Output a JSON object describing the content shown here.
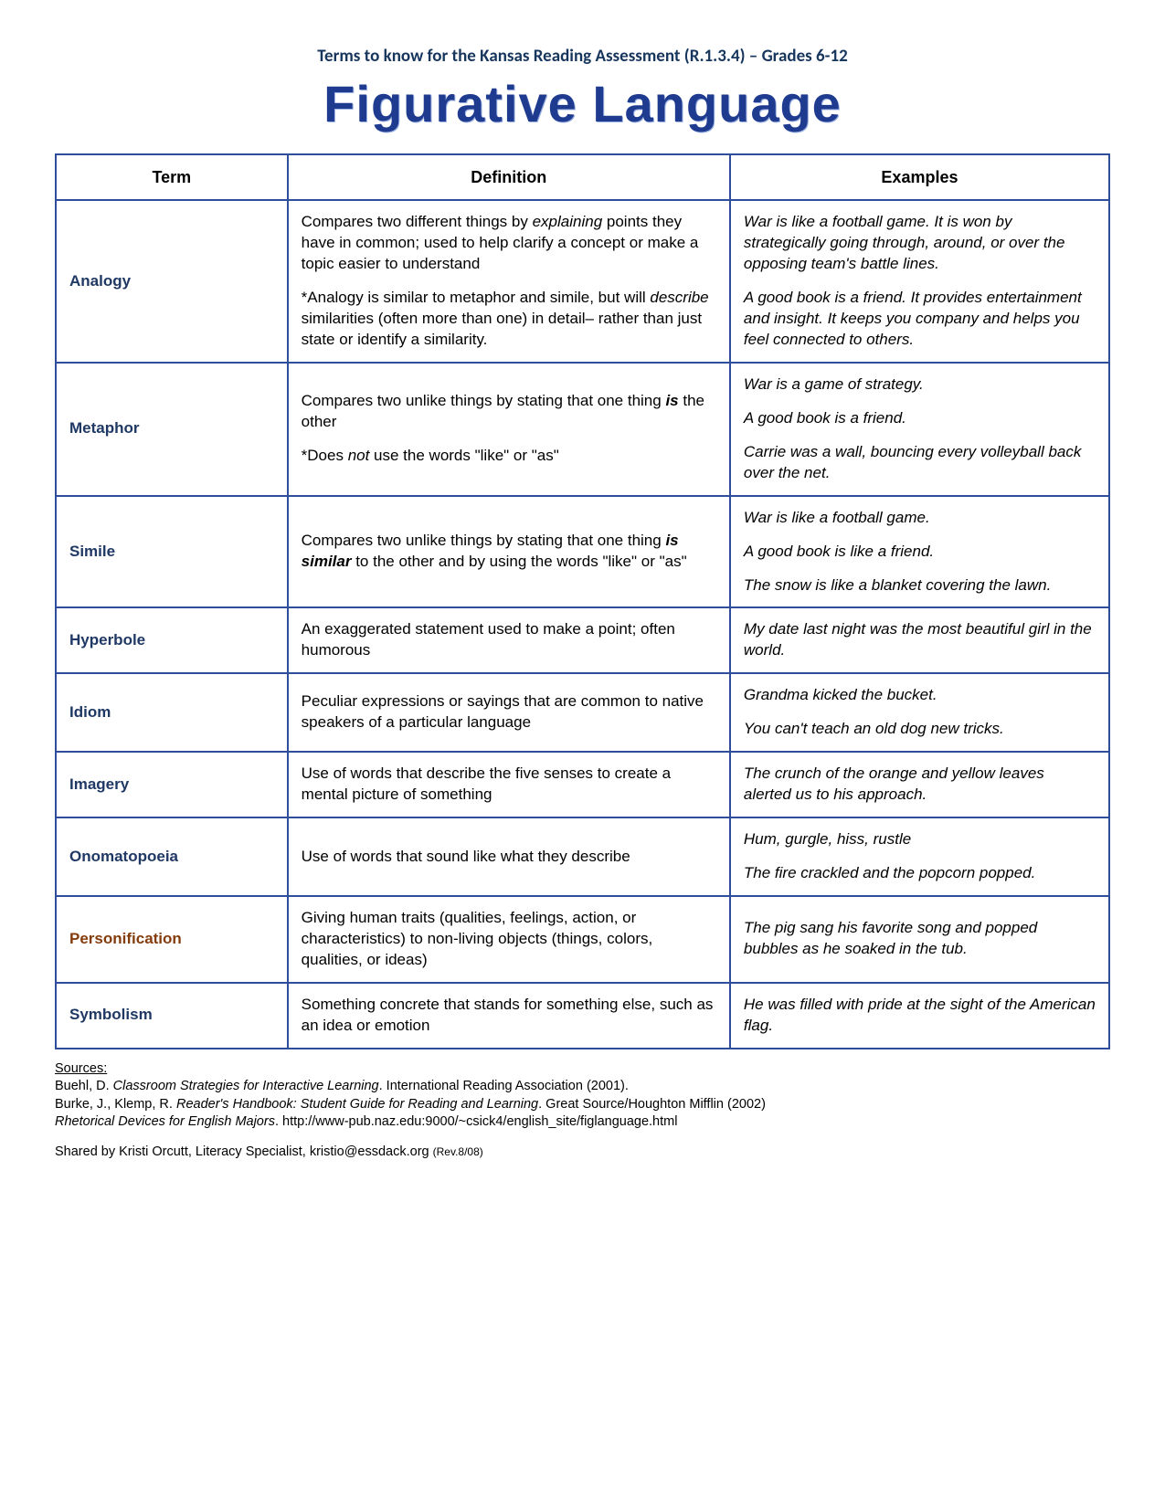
{
  "document": {
    "subheading": "Terms to know for the Kansas Reading Assessment (R.1.3.4) – Grades 6-12",
    "title": "Figurative Language",
    "title_color": "#1f3b8f",
    "subheading_color": "#17365d",
    "border_color": "#2e4d9b",
    "table": {
      "headers": [
        "Term",
        "Definition",
        "Examples"
      ],
      "rows": [
        {
          "term": "Analogy",
          "term_color": "#1f3864",
          "definition_html": "<p class=\"para\">Compares two different things by <em class=\"ital\">explaining</em> points they have in common; used to help clarify a concept or make a topic easier to understand</p><p class=\"para\">*Analogy is similar to metaphor and simile, but will <em class=\"ital\">describe</em> similarities (often more than one) in detail– rather than just state or identify a similarity.</p>",
          "examples_html": "<p class=\"para\">War is like a football game.  It is won by strategically going through, around, or over the opposing team's battle lines.</p><p class=\"para\">A good book is a friend. It provides entertainment and insight. It keeps you company and helps you feel connected to others.</p>"
        },
        {
          "term": "Metaphor",
          "term_color": "#1f3864",
          "definition_html": "<p class=\"para\">Compares two unlike things by stating that one thing <strong class=\"bi\">is</strong> the other</p><p class=\"para\">*Does <em class=\"ital\">not</em> use the words \"like\" or \"as\"</p>",
          "examples_html": "<p class=\"para\">War is a game of strategy.</p><p class=\"para\">A good book is a friend.</p><p class=\"para\">Carrie was a wall, bouncing every volleyball back over the net.</p>"
        },
        {
          "term": "Simile",
          "term_color": "#1f3864",
          "definition_html": "<p class=\"para\">Compares two unlike things by stating that one thing <strong class=\"bi\">is similar</strong> to the other and by using the words \"like\" or \"as\"</p>",
          "examples_html": "<p class=\"para\">War is like a football game.</p><p class=\"para\">A good book is like a friend.</p><p class=\"para\">The snow is like a blanket covering the lawn.</p>"
        },
        {
          "term": "Hyperbole",
          "term_color": "#1f3864",
          "definition_html": "<p class=\"para\">An exaggerated statement used to make a point; often humorous</p>",
          "examples_html": "<p class=\"para\">My date last night was the most beautiful girl in the world.</p>"
        },
        {
          "term": "Idiom",
          "term_color": "#1f3864",
          "definition_html": "<p class=\"para\">Peculiar expressions or sayings that are common to native speakers of a particular language</p>",
          "examples_html": "<p class=\"para\">Grandma kicked the bucket.</p><p class=\"para\">You can't teach an old dog new tricks.</p>"
        },
        {
          "term": "Imagery",
          "term_color": "#1f3864",
          "definition_html": "<p class=\"para\">Use of words that describe the five senses to create a mental picture of something</p>",
          "examples_html": "<p class=\"para\">The crunch of the orange and yellow leaves alerted us to his approach.</p>"
        },
        {
          "term": "Onomatopoeia",
          "term_color": "#1f3864",
          "definition_html": "<p class=\"para\">Use of words that sound like what they describe</p>",
          "examples_html": "<p class=\"para\">Hum, gurgle, hiss, rustle</p><p class=\"para\">The fire crackled and the popcorn popped.</p>"
        },
        {
          "term": "Personification",
          "term_color": "#843c0c",
          "definition_html": "<p class=\"para\">Giving human traits (qualities, feelings, action, or characteristics) to non-living objects (things, colors, qualities, or ideas)</p>",
          "examples_html": "<p class=\"para\">The pig sang his favorite song and popped bubbles as he soaked in the tub.</p>"
        },
        {
          "term": "Symbolism",
          "term_color": "#1f3864",
          "definition_html": "<p class=\"para\">Something concrete that stands for something else, such as an idea or emotion</p>",
          "examples_html": "<p class=\"para\">He was filled with pride at the sight of the American flag.</p>"
        }
      ]
    },
    "sources": {
      "label": "Sources:",
      "lines_html": [
        "Buehl, D.  <em class=\"ital\">Classroom Strategies for Interactive Learning</em>. International Reading Association (2001).",
        "Burke, J., Klemp, R.  <em class=\"ital\">Reader's Handbook: Student Guide for Reading and Learning</em>. Great Source/Houghton Mifflin (2002)",
        "<em class=\"ital\">Rhetorical Devices for English Majors</em>. http://www-pub.naz.edu:9000/~csick4/english_site/figlanguage.html"
      ]
    },
    "shared": {
      "text": "Shared by Kristi Orcutt, Literacy Specialist, kristio@essdack.org",
      "rev": "(Rev.8/08)"
    }
  }
}
